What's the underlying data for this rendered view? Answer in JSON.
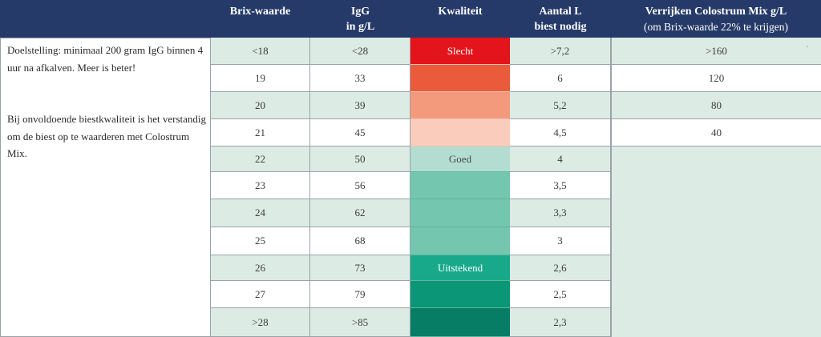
{
  "headers": {
    "brix": "Brix-waarde",
    "igg_line1": "IgG",
    "igg_line2": "in g/L",
    "quality": "Kwaliteit",
    "liters_line1": "Aantal L",
    "liters_line2": "biest nodig",
    "enrich_line1": "Verrijken Colostrum Mix g/L",
    "enrich_line2": "(om Brix-waarde 22% te krijgen)"
  },
  "side_notes": {
    "goal": "Doelstelling: minimaal 200 gram IgG binnen 4 uur na afkalven. Meer is beter!",
    "advice": "Bij onvoldoende biestkwaliteit is het verstandig om de biest op te waarderen met Colostrum Mix."
  },
  "rows": [
    {
      "brix": "<18",
      "igg": "<28",
      "liters": ">7,2",
      "quality_label": "Slecht",
      "quality_color": "#e3141b",
      "enrich": ">160"
    },
    {
      "brix": "19",
      "igg": "33",
      "liters": "6",
      "quality_label": "",
      "quality_color": "#ea5b3c",
      "enrich": "120"
    },
    {
      "brix": "20",
      "igg": "39",
      "liters": "5,2",
      "quality_label": "",
      "quality_color": "#f39a7d",
      "enrich": "80"
    },
    {
      "brix": "21",
      "igg": "45",
      "liters": "4,5",
      "quality_label": "",
      "quality_color": "#f9ccbb",
      "enrich": "40"
    },
    {
      "brix": "22",
      "igg": "50",
      "liters": "4",
      "quality_label": "Goed",
      "quality_color": "#b3ddd1",
      "enrich": ""
    },
    {
      "brix": "23",
      "igg": "56",
      "liters": "3,5",
      "quality_label": "",
      "quality_color": "#74c6ae",
      "enrich": ""
    },
    {
      "brix": "24",
      "igg": "62",
      "liters": "3,3",
      "quality_label": "",
      "quality_color": "#74c6ae",
      "enrich": ""
    },
    {
      "brix": "25",
      "igg": "68",
      "liters": "3",
      "quality_label": "",
      "quality_color": "#74c6ae",
      "enrich": ""
    },
    {
      "brix": "26",
      "igg": "73",
      "liters": "2,6",
      "quality_label": "Uitstekend",
      "quality_color": "#18a98a",
      "enrich": ""
    },
    {
      "brix": "27",
      "igg": "79",
      "liters": "2,5",
      "quality_label": "",
      "quality_color": "#0b9677",
      "enrich": ""
    },
    {
      "brix": ">28",
      "igg": ">85",
      "liters": "2,3",
      "quality_label": "",
      "quality_color": "#087d65",
      "enrich": ""
    }
  ],
  "colors": {
    "header_bg": "#253a68",
    "row_tint": "#dcebe4",
    "row_plain": "#ffffff"
  }
}
